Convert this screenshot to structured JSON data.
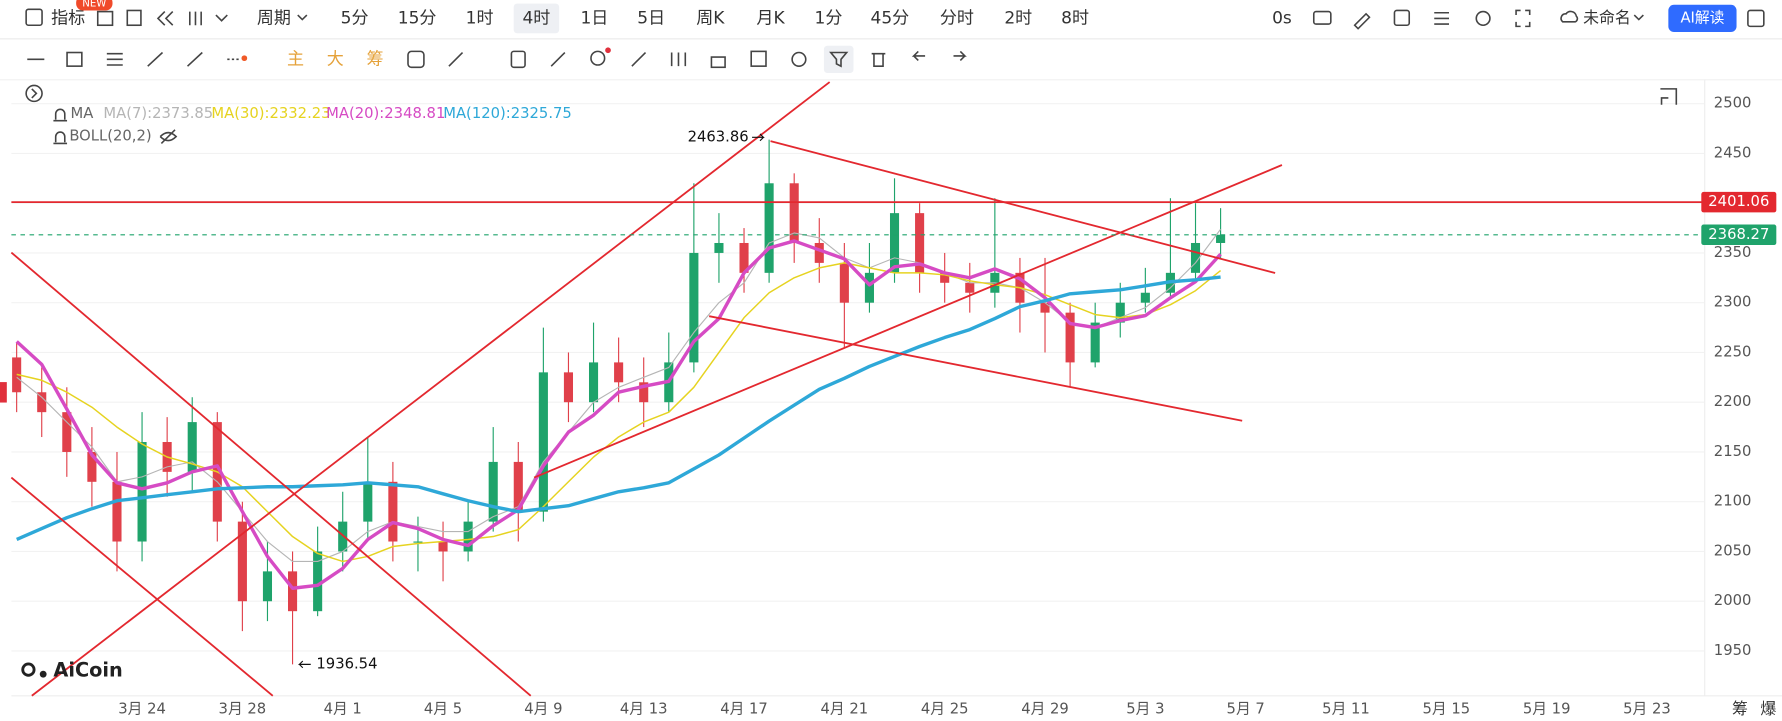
{
  "toolbar": {
    "indicator": "指标",
    "new_badge": "NEW",
    "period": "周期",
    "intervals": [
      "5分",
      "15分",
      "1时",
      "4时",
      "1日",
      "5日",
      "周K",
      "月K",
      "1分",
      "45分",
      "分时",
      "2时",
      "8时"
    ],
    "countdown": "0s",
    "layout_name": "未命名",
    "ai_button": "AI解读",
    "draw_tools": [
      "主",
      "大",
      "筹"
    ]
  },
  "legend": {
    "ma_group": "MA",
    "boll": "BOLL(20,2)"
  },
  "branding": {
    "logo": "AiCoin",
    "bottom_right": [
      "筹",
      "爆"
    ]
  },
  "chart_data": {
    "type": "candlestick",
    "categories": [
      null,
      null,
      null,
      null,
      null,
      "3月 24",
      null,
      null,
      null,
      "3月 28",
      null,
      null,
      null,
      "4月 1",
      null,
      null,
      null,
      "4月 5",
      null,
      null,
      null,
      "4月 9",
      null,
      null,
      null,
      "4月 13",
      null,
      null,
      null,
      "4月 17",
      null,
      null,
      null,
      "4月 21",
      null,
      null,
      null,
      "4月 25",
      null,
      null,
      null,
      "4月 29",
      null,
      null,
      null,
      "5月 3",
      null,
      null,
      null,
      "5月 7",
      null,
      null,
      null,
      "5月 11",
      null,
      null,
      null,
      "5月 15",
      null,
      null,
      null,
      "5月 19",
      null,
      null,
      null,
      "5月 23"
    ],
    "open": [
      2245,
      2210,
      2190,
      2150,
      2120,
      2060,
      2160,
      2130,
      2180,
      2080,
      2000,
      2030,
      1990,
      2050,
      2080,
      2120,
      2060,
      2060,
      2050,
      2080,
      2140,
      2090,
      2230,
      2200,
      2240,
      2220,
      2200,
      2240,
      2350,
      2360,
      2330,
      2420,
      2360,
      2340,
      2300,
      2330,
      2390,
      2330,
      2320,
      2310,
      2330,
      2300,
      2290,
      2240,
      2280,
      2300,
      2310,
      2330,
      2360,
      null,
      null,
      null,
      null,
      null,
      null,
      null,
      null,
      null,
      null,
      null,
      null,
      null,
      null,
      null,
      null,
      null
    ],
    "high": [
      2260,
      2235,
      2215,
      2175,
      2150,
      2190,
      2185,
      2205,
      2190,
      2100,
      2060,
      2050,
      2075,
      2110,
      2165,
      2140,
      2085,
      2080,
      2100,
      2175,
      2160,
      2275,
      2250,
      2280,
      2265,
      2245,
      2270,
      2420,
      2390,
      2375,
      2463.86,
      2430,
      2385,
      2360,
      2360,
      2425,
      2400,
      2350,
      2340,
      2405,
      2345,
      2345,
      2300,
      2300,
      2320,
      2335,
      2405,
      2400,
      2395,
      null,
      null,
      null,
      null,
      null,
      null,
      null,
      null,
      null,
      null,
      null,
      null,
      null,
      null,
      null,
      null,
      null
    ],
    "low": [
      2190,
      2165,
      2125,
      2095,
      2030,
      2040,
      2105,
      2110,
      2060,
      1970,
      1980,
      1936.54,
      1985,
      2030,
      2060,
      2040,
      2030,
      2020,
      2040,
      2070,
      2060,
      2080,
      2180,
      2190,
      2200,
      2175,
      2190,
      2230,
      2320,
      2310,
      2320,
      2340,
      2320,
      2255,
      2290,
      2320,
      2310,
      2300,
      2290,
      2295,
      2270,
      2250,
      2215,
      2235,
      2265,
      2290,
      2305,
      2320,
      2345,
      null,
      null,
      null,
      null,
      null,
      null,
      null,
      null,
      null,
      null,
      null,
      null,
      null,
      null,
      null,
      null,
      null
    ],
    "close": [
      2210,
      2190,
      2150,
      2120,
      2060,
      2160,
      2130,
      2180,
      2080,
      2000,
      2030,
      1990,
      2050,
      2080,
      2120,
      2060,
      2060,
      2050,
      2080,
      2140,
      2090,
      2230,
      2200,
      2240,
      2220,
      2200,
      2240,
      2350,
      2360,
      2330,
      2420,
      2360,
      2340,
      2300,
      2330,
      2390,
      2330,
      2320,
      2310,
      2330,
      2300,
      2290,
      2240,
      2280,
      2300,
      2310,
      2330,
      2360,
      2368.27,
      null,
      null,
      null,
      null,
      null,
      null,
      null,
      null,
      null,
      null,
      null,
      null,
      null,
      null,
      null,
      null,
      null
    ],
    "up_color": "#1fa36b",
    "down_color": "#e0404a",
    "ylim": [
      1905,
      2524
    ],
    "yticks": [
      1950,
      2000,
      2050,
      2100,
      2150,
      2200,
      2250,
      2300,
      2350,
      2400,
      2450,
      2500
    ],
    "grid": true,
    "lines": [
      {
        "label": "MA(7):2373.85",
        "color": "#b5b5b5",
        "width": 1,
        "values": [
          2225,
          2205,
          2180,
          2155,
          2120,
          2125,
          2135,
          2140,
          2120,
          2090,
          2060,
          2040,
          2040,
          2050,
          2070,
          2080,
          2075,
          2070,
          2070,
          2085,
          2095,
          2140,
          2170,
          2200,
          2215,
          2225,
          2235,
          2270,
          2300,
          2320,
          2360,
          2370,
          2365,
          2345,
          2335,
          2345,
          2340,
          2330,
          2320,
          2320,
          2315,
          2300,
          2280,
          2275,
          2285,
          2295,
          2315,
          2340,
          2373.85,
          null,
          null,
          null,
          null,
          null,
          null,
          null,
          null,
          null,
          null,
          null,
          null,
          null,
          null,
          null,
          null,
          null
        ]
      },
      {
        "label": "MA(30):2332.23",
        "color": "#e6d320",
        "width": 1.3,
        "values": [
          2228,
          2222,
          2210,
          2195,
          2175,
          2158,
          2145,
          2138,
          2130,
          2115,
          2090,
          2065,
          2048,
          2040,
          2045,
          2055,
          2058,
          2060,
          2062,
          2065,
          2072,
          2095,
          2120,
          2145,
          2165,
          2180,
          2190,
          2215,
          2250,
          2285,
          2310,
          2325,
          2335,
          2340,
          2335,
          2330,
          2330,
          2328,
          2322,
          2318,
          2315,
          2308,
          2298,
          2288,
          2285,
          2288,
          2298,
          2312,
          2332.23,
          null,
          null,
          null,
          null,
          null,
          null,
          null,
          null,
          null,
          null,
          null,
          null,
          null,
          null,
          null,
          null,
          null
        ]
      },
      {
        "label": "MA(20):2348.81",
        "color": "#d64bc4",
        "width": 3,
        "values": [
          2261,
          2238,
          2193,
          2147,
          2119,
          2113,
          2119,
          2130,
          2136,
          2090,
          2045,
          2013,
          2016,
          2033,
          2062,
          2079,
          2073,
          2062,
          2056,
          2076,
          2092,
          2136,
          2170,
          2187,
          2210,
          2216,
          2221,
          2261,
          2284,
          2330,
          2355,
          2362,
          2353,
          2344,
          2318,
          2336,
          2339,
          2330,
          2325,
          2334,
          2324,
          2305,
          2279,
          2275,
          2282,
          2287,
          2305,
          2321,
          2348.81,
          null,
          null,
          null,
          null,
          null,
          null,
          null,
          null,
          null,
          null,
          null,
          null,
          null,
          null,
          null,
          null,
          null
        ]
      },
      {
        "label": "MA(120):2325.75",
        "color": "#2ea8d8",
        "width": 3,
        "values": [
          2062,
          2073,
          2084,
          2093,
          2101,
          2104,
          2107,
          2110,
          2113,
          2114,
          2115,
          2115,
          2116,
          2117,
          2119,
          2117,
          2115,
          2108,
          2101,
          2095,
          2090,
          2093,
          2096,
          2103,
          2110,
          2114,
          2119,
          2133,
          2147,
          2164,
          2181,
          2197,
          2213,
          2224,
          2236,
          2246,
          2256,
          2265,
          2273,
          2284,
          2296,
          2302,
          2309,
          2311,
          2313,
          2317,
          2321,
          2323,
          2325.75,
          null,
          null,
          null,
          null,
          null,
          null,
          null,
          null,
          null,
          null,
          null,
          null,
          null,
          null,
          null,
          null,
          null
        ]
      }
    ],
    "price_lines": [
      {
        "value": 2401.06,
        "color": "#e3282f",
        "dashed": false
      }
    ],
    "last_price_color": "#1fa36b"
  }
}
